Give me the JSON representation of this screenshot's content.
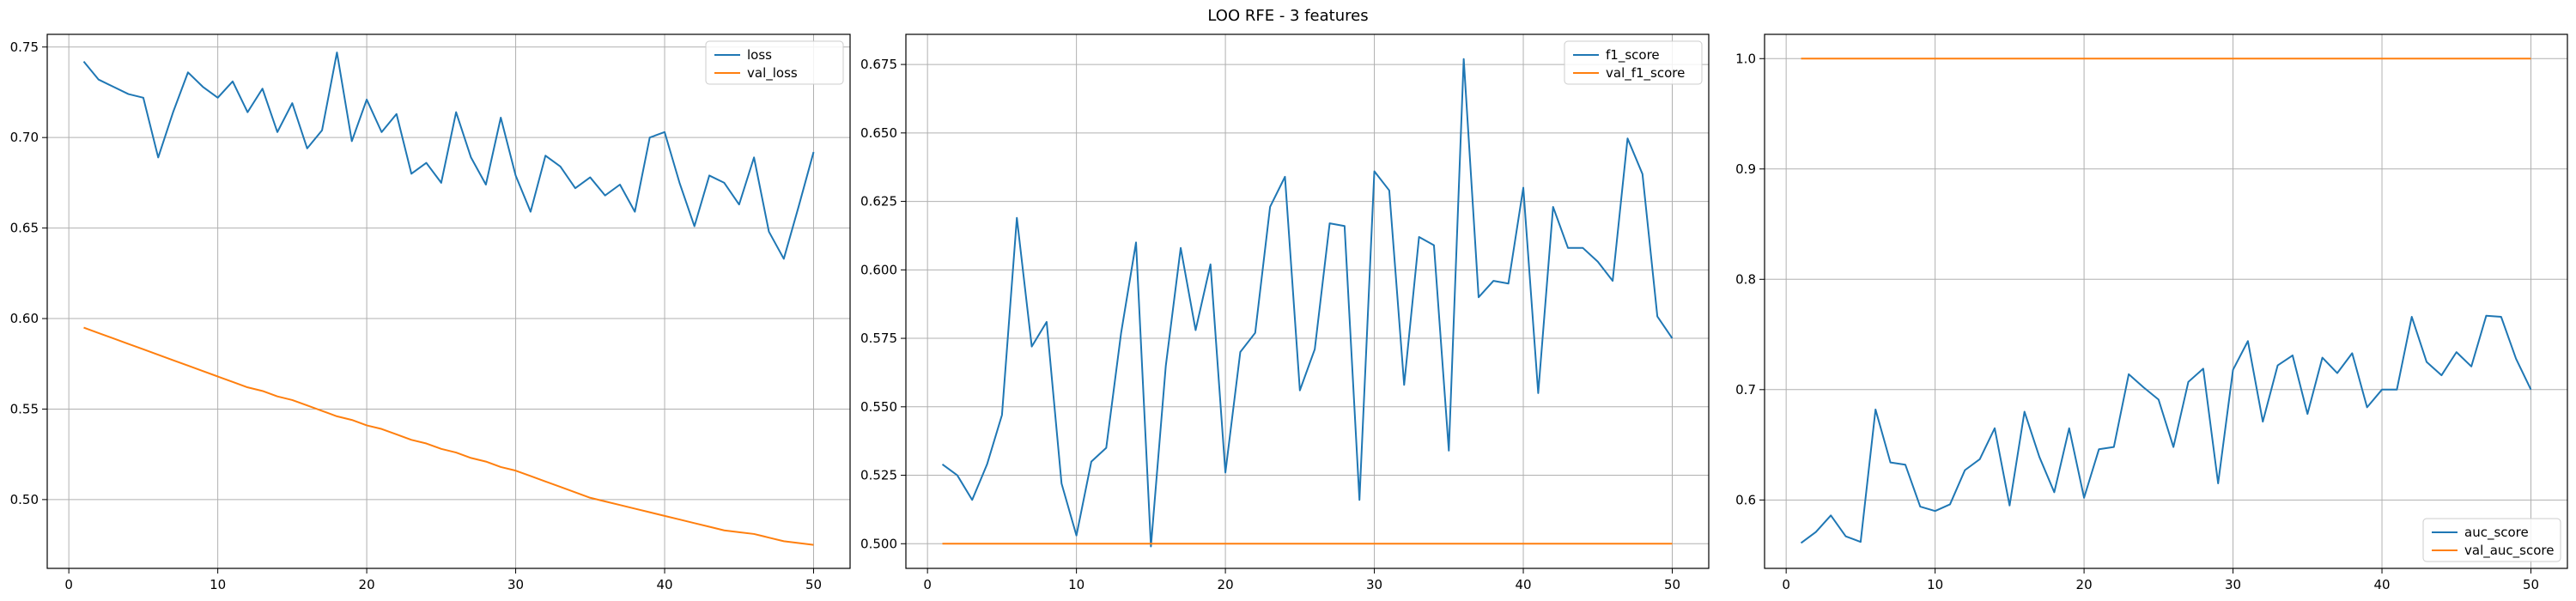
{
  "figure": {
    "title": "LOO RFE - 3 features"
  },
  "colors": {
    "series1": "#1f77b4",
    "series2": "#ff7f0e",
    "grid": "#b0b0b0"
  },
  "chart_data": [
    {
      "type": "line",
      "title": "",
      "xlabel": "",
      "ylabel": "",
      "xlim": [
        -1.45,
        52.45
      ],
      "ylim": [
        0.462,
        0.757
      ],
      "xticks": [
        0,
        10,
        20,
        30,
        40,
        50
      ],
      "yticks": [
        0.5,
        0.55,
        0.6,
        0.65,
        0.7,
        0.75
      ],
      "ytick_decimals": 2,
      "grid": true,
      "legend_loc": "top-right",
      "x": [
        1,
        2,
        3,
        4,
        5,
        6,
        7,
        8,
        9,
        10,
        11,
        12,
        13,
        14,
        15,
        16,
        17,
        18,
        19,
        20,
        21,
        22,
        23,
        24,
        25,
        26,
        27,
        28,
        29,
        30,
        31,
        32,
        33,
        34,
        35,
        36,
        37,
        38,
        39,
        40,
        41,
        42,
        43,
        44,
        45,
        46,
        47,
        48,
        49,
        50
      ],
      "series": [
        {
          "name": "loss",
          "color": "#1f77b4",
          "values": [
            0.742,
            0.732,
            0.728,
            0.724,
            0.722,
            0.689,
            0.714,
            0.736,
            0.728,
            0.722,
            0.731,
            0.714,
            0.727,
            0.703,
            0.719,
            0.694,
            0.704,
            0.747,
            0.698,
            0.721,
            0.703,
            0.713,
            0.68,
            0.686,
            0.675,
            0.714,
            0.689,
            0.674,
            0.711,
            0.679,
            0.659,
            0.69,
            0.684,
            0.672,
            0.678,
            0.668,
            0.674,
            0.659,
            0.7,
            0.703,
            0.675,
            0.651,
            0.679,
            0.675,
            0.663,
            0.689,
            0.648,
            0.633,
            0.662,
            0.692
          ]
        },
        {
          "name": "val_loss",
          "color": "#ff7f0e",
          "values": [
            0.595,
            0.592,
            0.589,
            0.586,
            0.583,
            0.58,
            0.577,
            0.574,
            0.571,
            0.568,
            0.565,
            0.562,
            0.56,
            0.557,
            0.555,
            0.552,
            0.549,
            0.546,
            0.544,
            0.541,
            0.539,
            0.536,
            0.533,
            0.531,
            0.528,
            0.526,
            0.523,
            0.521,
            0.518,
            0.516,
            0.513,
            0.51,
            0.507,
            0.504,
            0.501,
            0.499,
            0.497,
            0.495,
            0.493,
            0.491,
            0.489,
            0.487,
            0.485,
            0.483,
            0.482,
            0.481,
            0.479,
            0.477,
            0.476,
            0.475
          ]
        }
      ]
    },
    {
      "type": "line",
      "title": "",
      "xlabel": "",
      "ylabel": "",
      "xlim": [
        -1.45,
        52.45
      ],
      "ylim": [
        0.491,
        0.686
      ],
      "xticks": [
        0,
        10,
        20,
        30,
        40,
        50
      ],
      "yticks": [
        0.5,
        0.525,
        0.55,
        0.575,
        0.6,
        0.625,
        0.65,
        0.675
      ],
      "ytick_decimals": 3,
      "grid": true,
      "legend_loc": "top-right",
      "x": [
        1,
        2,
        3,
        4,
        5,
        6,
        7,
        8,
        9,
        10,
        11,
        12,
        13,
        14,
        15,
        16,
        17,
        18,
        19,
        20,
        21,
        22,
        23,
        24,
        25,
        26,
        27,
        28,
        29,
        30,
        31,
        32,
        33,
        34,
        35,
        36,
        37,
        38,
        39,
        40,
        41,
        42,
        43,
        44,
        45,
        46,
        47,
        48,
        49,
        50
      ],
      "series": [
        {
          "name": "f1_score",
          "color": "#1f77b4",
          "values": [
            0.529,
            0.525,
            0.516,
            0.529,
            0.547,
            0.619,
            0.572,
            0.581,
            0.522,
            0.503,
            0.53,
            0.535,
            0.577,
            0.61,
            0.499,
            0.565,
            0.608,
            0.578,
            0.602,
            0.526,
            0.57,
            0.577,
            0.623,
            0.634,
            0.556,
            0.571,
            0.617,
            0.616,
            0.516,
            0.636,
            0.629,
            0.558,
            0.612,
            0.609,
            0.534,
            0.677,
            0.59,
            0.596,
            0.595,
            0.63,
            0.555,
            0.623,
            0.608,
            0.608,
            0.603,
            0.596,
            0.648,
            0.635,
            0.583,
            0.575
          ]
        },
        {
          "name": "val_f1_score",
          "color": "#ff7f0e",
          "values": [
            0.5,
            0.5,
            0.5,
            0.5,
            0.5,
            0.5,
            0.5,
            0.5,
            0.5,
            0.5,
            0.5,
            0.5,
            0.5,
            0.5,
            0.5,
            0.5,
            0.5,
            0.5,
            0.5,
            0.5,
            0.5,
            0.5,
            0.5,
            0.5,
            0.5,
            0.5,
            0.5,
            0.5,
            0.5,
            0.5,
            0.5,
            0.5,
            0.5,
            0.5,
            0.5,
            0.5,
            0.5,
            0.5,
            0.5,
            0.5,
            0.5,
            0.5,
            0.5,
            0.5,
            0.5,
            0.5,
            0.5,
            0.5,
            0.5,
            0.5
          ]
        }
      ]
    },
    {
      "type": "line",
      "title": "",
      "xlabel": "",
      "ylabel": "",
      "xlim": [
        -1.45,
        52.45
      ],
      "ylim": [
        0.538,
        1.022
      ],
      "xticks": [
        0,
        10,
        20,
        30,
        40,
        50
      ],
      "yticks": [
        0.6,
        0.7,
        0.8,
        0.9,
        1.0
      ],
      "ytick_decimals": 1,
      "grid": true,
      "legend_loc": "bottom-right",
      "x": [
        1,
        2,
        3,
        4,
        5,
        6,
        7,
        8,
        9,
        10,
        11,
        12,
        13,
        14,
        15,
        16,
        17,
        18,
        19,
        20,
        21,
        22,
        23,
        24,
        25,
        26,
        27,
        28,
        29,
        30,
        31,
        32,
        33,
        34,
        35,
        36,
        37,
        38,
        39,
        40,
        41,
        42,
        43,
        44,
        45,
        46,
        47,
        48,
        49,
        50
      ],
      "series": [
        {
          "name": "auc_score",
          "color": "#1f77b4",
          "values": [
            0.561,
            0.571,
            0.586,
            0.567,
            0.562,
            0.682,
            0.634,
            0.632,
            0.594,
            0.59,
            0.596,
            0.627,
            0.637,
            0.665,
            0.595,
            0.68,
            0.639,
            0.607,
            0.665,
            0.602,
            0.646,
            0.648,
            0.714,
            0.702,
            0.691,
            0.648,
            0.707,
            0.719,
            0.615,
            0.718,
            0.744,
            0.671,
            0.722,
            0.731,
            0.678,
            0.729,
            0.715,
            0.733,
            0.684,
            0.7,
            0.7,
            0.766,
            0.725,
            0.713,
            0.734,
            0.721,
            0.767,
            0.766,
            0.728,
            0.7
          ]
        },
        {
          "name": "val_auc_score",
          "color": "#ff7f0e",
          "values": [
            1.0,
            1.0,
            1.0,
            1.0,
            1.0,
            1.0,
            1.0,
            1.0,
            1.0,
            1.0,
            1.0,
            1.0,
            1.0,
            1.0,
            1.0,
            1.0,
            1.0,
            1.0,
            1.0,
            1.0,
            1.0,
            1.0,
            1.0,
            1.0,
            1.0,
            1.0,
            1.0,
            1.0,
            1.0,
            1.0,
            1.0,
            1.0,
            1.0,
            1.0,
            1.0,
            1.0,
            1.0,
            1.0,
            1.0,
            1.0,
            1.0,
            1.0,
            1.0,
            1.0,
            1.0,
            1.0,
            1.0,
            1.0,
            1.0,
            1.0
          ]
        }
      ]
    }
  ]
}
